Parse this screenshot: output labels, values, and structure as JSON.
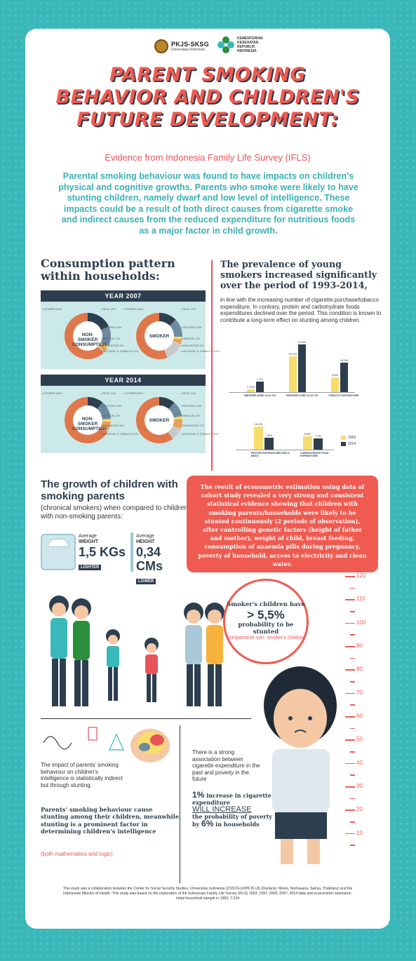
{
  "header": {
    "logo1_name": "PKJS-SKSG",
    "logo1_sub": "Universitas Indonesia",
    "logo2_lines": [
      "KEMENTERIAN",
      "KESEHATAN",
      "REPUBLIK",
      "INDONESIA"
    ]
  },
  "title_lines": [
    "PARENT SMOKING",
    "BEHAVIOR AND CHILDREN'S",
    "FUTURE DEVELOPMENT:"
  ],
  "subtitle": "Evidence from Indonesia Family Life Survey (IFLS)",
  "intro": "Parental smoking behaviour was found to have impacts on children's physical and cognitive growths. Parents who smoke were likely to have stunting children, namely dwarf and low level of intelligence. These impacts could be a result of both direct causes from cigarette smoke and indirect causes from the reduced expenditure for nutritious foods as a major factor in child growth.",
  "consumption": {
    "heading": "Consumption pattern within households:",
    "years": [
      {
        "label": "YEAR 2007",
        "charts": [
          {
            "label": "NON-SMOKER CONSUMPTION",
            "segments": [
              "OTHERS 61%",
              "RICE 18%",
              "PROTEIN 14%",
              "MEDICAL 2%",
              "EDUCATION 3%",
              "ALCOHOL & TOBACCO 1%"
            ]
          },
          {
            "label": "SMOKER",
            "segments": [
              "OTHERS 55%",
              "RICE 12%",
              "PROTEIN 13%",
              "MEDICAL 2%",
              "EDUCATION 3%",
              "ALCOHOL & TOBACCO 14%"
            ]
          }
        ]
      },
      {
        "label": "YEAR 2014",
        "charts": [
          {
            "label": "NON-SMOKER CONSUMPTION",
            "segments": [
              "OTHERS 68%",
              "RICE 11%",
              "PROTEIN 13%",
              "MEDICAL 2%",
              "EDUCATION 6%",
              "ALCOHOL & TOBACCO 1%"
            ]
          },
          {
            "label": "SMOKER",
            "segments": [
              "OTHERS 60%",
              "RICE 11%",
              "PROTEIN 11%",
              "MEDICAL 2%",
              "EDUCATION 7%",
              "ALCOHOL & TOBACCO 9%"
            ]
          }
        ]
      }
    ]
  },
  "prevalence": {
    "heading": "The prevalence of young smokers increased significantly over the period of 1993-2014,",
    "body": "in line with the increasing number of cigarette purchase/tobacco expenditure. In contrary, protein and carbohydrate foods expenditures declined over the period. This condition is known to contribute a long-term effect on stunting among children."
  },
  "chart_data": [
    {
      "type": "bar",
      "categories": [
        "SMOKERS AGED 15-20 Y/O",
        "SMOKERS AGED 21-30 Y/O",
        "TOBACCO EXPENDITURE"
      ],
      "series": [
        {
          "name": "1993",
          "values": [
            1.79,
            24.2,
            9.8
          ],
          "labels": [
            "1,79%",
            "24,2%",
            "9,8%"
          ]
        },
        {
          "name": "2014",
          "values": [
            7.1,
            31.8,
            19.9
          ],
          "labels": [
            "7,1%",
            "31,8%",
            "19,9%"
          ]
        }
      ]
    },
    {
      "type": "bar",
      "categories": [
        "PROTEIN EXPENDITURE (FISH & MEAT)",
        "CARBOHYDRATE FOOD EXPENDITURE"
      ],
      "series": [
        {
          "name": "1993",
          "values": [
            15.3,
            8.8
          ],
          "labels": [
            "15,3%",
            "8,8%"
          ]
        },
        {
          "name": "2014",
          "values": [
            7.8,
            7.3
          ],
          "labels": [
            "7,8%",
            "7,3%"
          ]
        }
      ]
    }
  ],
  "growth": {
    "heading": "The growth of children with smoking parents",
    "body": "(chronical smokers) when compared to children with non-smoking parents:",
    "weight": {
      "small": "Average",
      "label": "WEIGHT",
      "value": "1,5 KGs",
      "tag": "LIGHTER"
    },
    "height": {
      "small": "Average",
      "label": "HEIGHT",
      "value": "0,34 CMs",
      "tag": "LOWER"
    }
  },
  "econometric": "The result of econometric estimation using data of cohort study revealed a very strong and consistent statistical evidence showing that children with smoking parents/households were likely to be stunted continuously (2 periods of observation), after controlling genetic factors (height of father and mother), weight of child, breast feeding, consumption of anaemia pills during pregnancy, poverty of household, access to electricity and clean water.",
  "ruler": [
    "120",
    "110",
    "100",
    "90",
    "80",
    "70",
    "60",
    "50",
    "40",
    "30",
    "20",
    "10"
  ],
  "bubble": {
    "line1": "Smoker's children have",
    "line2": "> 5,5%",
    "line3": "probability to be stunted",
    "line4": "compared to non- smoker's children"
  },
  "impact": "The impact of parents' smoking behaviour on children's intelligence is statistically indirect but through stunting.",
  "cause_heading": "Parents' smoking behaviour cause stunting among their children, meanwhile, stunting is a prominent factor in determining children's intelligence",
  "cause_note": "(both mathematics and logic)",
  "association": "There is a strong association between cigarette expenditure in the past and poverty in the future",
  "increase": {
    "p1": "1%",
    "p2": " increase in cigarette expenditure",
    "p3": "WILL INCREASE",
    "p4": "the probability of poverty by ",
    "p5": "6%",
    "p6": " in households"
  },
  "footer": "This study was a collaboration between the Center for Social Security Studies, Universitas Indonesia (CSSSS-UI/PKJS-UI) (Dartanto, Moeis, Nurhasana, Satrya, Thabrany) and the Indonesian Ministry of Health. This study was based on the exploration of the Indonesian Family Life Survey (IFLS) 1993, 1997, 2000, 2007, 2014 data and econometric estimation. Initial household sample in 1993: 7.224",
  "colors": {
    "teal": "#3ab7b9",
    "coral": "#ef5b50",
    "navy": "#2d3e4f",
    "orange": "#e0774a",
    "yellow": "#f6dd6e"
  }
}
